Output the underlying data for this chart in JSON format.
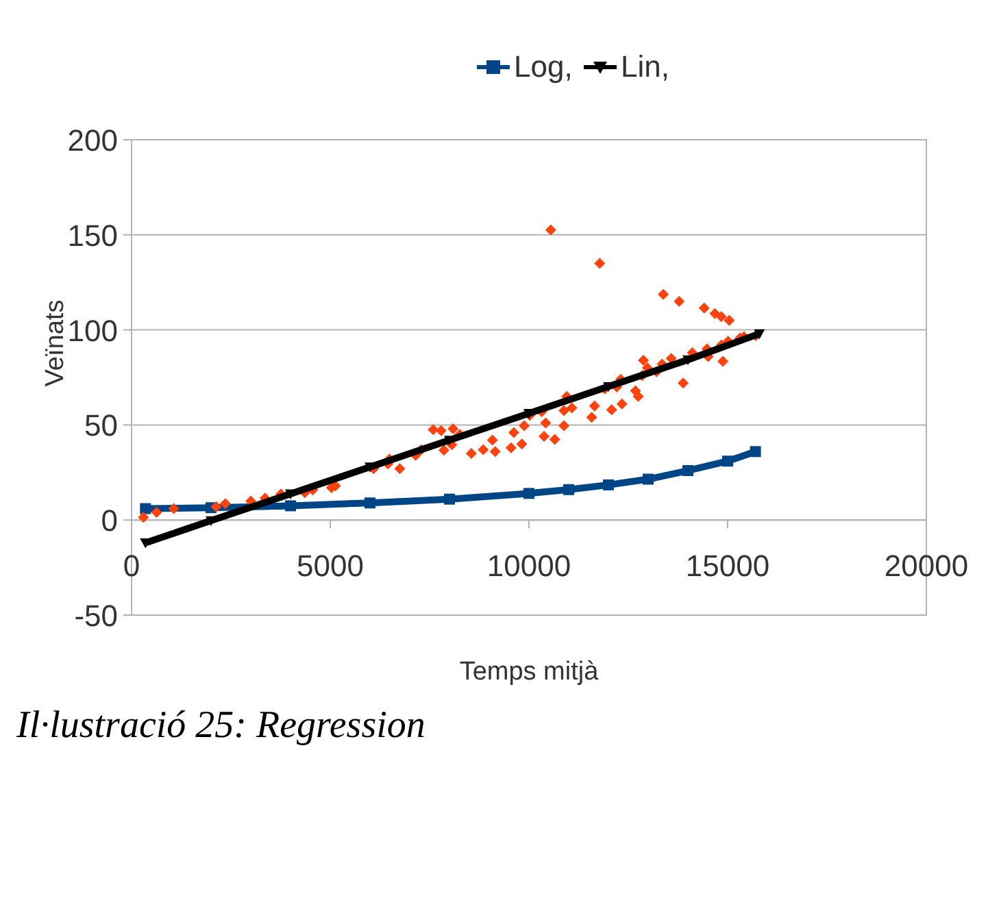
{
  "chart_data": {
    "type": "scatter",
    "xlabel": "Temps mitjà",
    "ylabel": "Veïnats",
    "annotations": [
      "Il·lustració 25: Regression"
    ],
    "xlim": [
      0,
      20000
    ],
    "xticks": [
      0,
      5000,
      10000,
      15000,
      20000
    ],
    "ylim": [
      -50,
      200
    ],
    "yticks": [
      -50,
      0,
      50,
      100,
      150,
      200
    ],
    "grid": "y",
    "legend": "top",
    "series": [
      {
        "name": "Log,",
        "type": "line",
        "marker": "square",
        "color": "#004586",
        "x": [
          350,
          2000,
          4000,
          6000,
          8000,
          10000,
          11000,
          12000,
          13000,
          14000,
          15000,
          15700
        ],
        "values": [
          6,
          6.5,
          7.5,
          9,
          11,
          14,
          16,
          18.5,
          21.5,
          26,
          31,
          36
        ]
      },
      {
        "marker": "diamond",
        "color": "#ff420e",
        "x": [
          300,
          630,
          1060,
          2130,
          2360,
          3000,
          3360,
          3760,
          4360,
          4560,
          5030,
          5130,
          6090,
          6450,
          6490,
          6750,
          7150,
          7290,
          7590,
          7790,
          7860,
          8060,
          8090,
          8260,
          8550,
          8850,
          9080,
          9150,
          9550,
          9620,
          9820,
          9880,
          10020,
          10320,
          10380,
          10420,
          10550,
          10650,
          10880,
          10880,
          10950,
          11080,
          11580,
          11650,
          11780,
          11910,
          12080,
          12210,
          12310,
          12340,
          12680,
          12750,
          12850,
          12880,
          12980,
          13210,
          13350,
          13380,
          13580,
          13780,
          13880,
          14110,
          14410,
          14480,
          14510,
          14680,
          14840,
          14840,
          14880,
          15010,
          15040,
          15310,
          15410,
          15710
        ],
        "values": [
          1.4,
          4,
          6,
          7,
          8.6,
          10,
          11.5,
          13.7,
          14.4,
          15.8,
          17,
          18,
          27,
          29.5,
          32,
          27,
          34,
          37,
          47.5,
          47,
          36.7,
          39.6,
          48,
          45,
          35,
          37,
          42,
          36,
          38,
          46,
          40,
          49.6,
          55,
          57,
          44,
          51,
          152.5,
          42.4,
          57.5,
          49.6,
          65,
          59,
          54,
          60,
          135,
          69,
          58,
          70,
          74,
          61,
          68,
          65,
          76,
          84,
          80,
          78,
          82,
          118.7,
          85,
          115,
          72,
          88,
          111.5,
          90,
          86,
          108.6,
          92,
          107,
          83.5,
          94,
          105,
          95.7,
          96.4,
          97
        ]
      },
      {
        "name": "Lin,",
        "type": "line",
        "marker": "triangle",
        "color": "#000000",
        "x": [
          350,
          2000,
          4000,
          6000,
          8000,
          10000,
          12000,
          14000,
          15800
        ],
        "values": [
          -12,
          -0.3,
          13.8,
          27.9,
          42,
          56.1,
          70.2,
          84.3,
          98
        ]
      }
    ]
  }
}
